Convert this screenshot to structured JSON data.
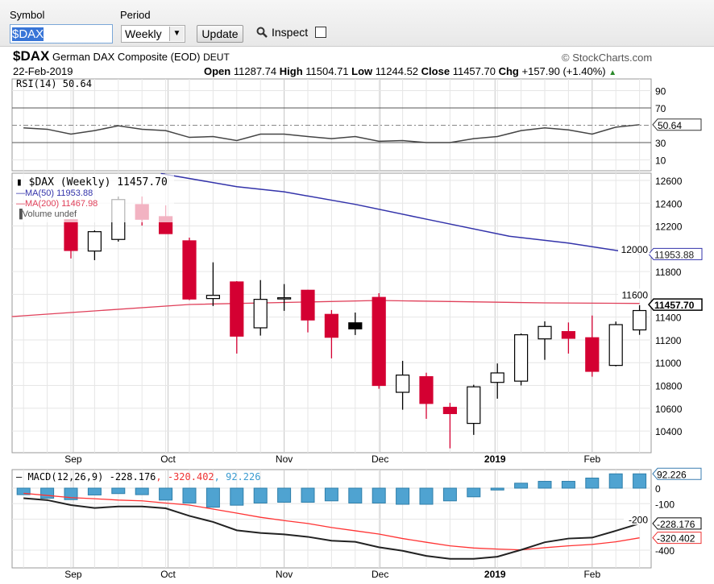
{
  "toolbar": {
    "symbol_label": "Symbol",
    "symbol_value": "$DAX",
    "period_label": "Period",
    "period_value": "Weekly",
    "update_label": "Update",
    "inspect_label": "Inspect"
  },
  "header": {
    "symbol": "$DAX",
    "name": "German DAX Composite (EOD)",
    "exchange": "DEUT",
    "credit": "© StockCharts.com",
    "date": "22-Feb-2019",
    "open_label": "Open",
    "open": "11287.74",
    "high_label": "High",
    "high": "11504.71",
    "low_label": "Low",
    "low": "11244.52",
    "close_label": "Close",
    "close": "11457.70",
    "chg_label": "Chg",
    "chg": "+157.90 (+1.40%)"
  },
  "colors": {
    "up": "#000000",
    "down": "#d40032",
    "ma50": "#3333aa",
    "ma200": "#e0405a",
    "hist": "#4fa3d1",
    "macd": "#222222",
    "signal": "#ff3333"
  },
  "rsi": {
    "legend": "RSI(14) 50.64",
    "last": "50.64",
    "ticks": [
      "90",
      "70",
      "30",
      "10"
    ],
    "tick_values": [
      90,
      70,
      30,
      10
    ],
    "values": [
      47,
      45.4,
      39.8,
      43.8,
      49.4,
      45.4,
      43.8,
      36,
      37,
      32.3,
      39.8,
      39.8,
      37,
      34.5,
      37,
      31.5,
      32.3,
      30,
      30,
      34.5,
      37,
      43.8,
      47,
      44.6,
      39.8,
      47.8,
      50.64
    ]
  },
  "price": {
    "legend_title": "$DAX (Weekly) 11457.70",
    "legend_ma50": "MA(50) 11953.88",
    "legend_ma200": "MA(200) 11467.98",
    "legend_volume": "Volume undef",
    "ticks": [
      "12600",
      "12400",
      "12200",
      "12000",
      "11800",
      "11600",
      "11400",
      "11200",
      "11000",
      "10800",
      "10600",
      "10400"
    ],
    "ma50_tag": "11953.88",
    "close_tag": "11457.70",
    "candles": [
      [
        12255,
        12260,
        11915,
        11985
      ],
      [
        11980,
        12162,
        11900,
        12150
      ],
      [
        12082,
        12459,
        12063,
        12432
      ],
      [
        12388,
        12459,
        12204,
        12259
      ],
      [
        12282,
        12381,
        12133,
        12133
      ],
      [
        12070,
        12098,
        11549,
        11559
      ],
      [
        11563,
        11881,
        11497,
        11591
      ],
      [
        11709,
        11716,
        11080,
        11233
      ],
      [
        11306,
        11725,
        11238,
        11556
      ],
      [
        11560,
        11690,
        11455,
        11570
      ],
      [
        11636,
        11640,
        11266,
        11375
      ],
      [
        11424,
        11462,
        11038,
        11223
      ],
      [
        11350,
        11440,
        11243,
        11297
      ],
      [
        11573,
        11610,
        10771,
        10800
      ],
      [
        10740,
        11016,
        10587,
        10891
      ],
      [
        10877,
        10912,
        10507,
        10642
      ],
      [
        10608,
        10647,
        10248,
        10553
      ],
      [
        10467,
        10806,
        10366,
        10788
      ],
      [
        10827,
        10993,
        10684,
        10910
      ],
      [
        10838,
        11257,
        10800,
        11245
      ],
      [
        11209,
        11363,
        11025,
        11318
      ],
      [
        11273,
        11353,
        11080,
        11214
      ],
      [
        11219,
        11414,
        10877,
        10924
      ],
      [
        10976,
        11361,
        10968,
        11334
      ],
      [
        11287.74,
        11504.71,
        11244.52,
        11457.7
      ]
    ],
    "ma50": [
      [
        3.8,
        12660
      ],
      [
        7,
        12545
      ],
      [
        9,
        12500
      ],
      [
        12,
        12390
      ],
      [
        15,
        12260
      ],
      [
        18.5,
        12110
      ],
      [
        21,
        12050
      ],
      [
        24,
        11954
      ]
    ],
    "ma200": [
      [
        -2.5,
        11405
      ],
      [
        5,
        11511
      ],
      [
        13,
        11546
      ],
      [
        20,
        11525
      ],
      [
        24,
        11520
      ]
    ]
  },
  "macd": {
    "legend_label": "MACD(12,26,9)",
    "legend_macd": "-228.176",
    "legend_signal": "-320.402",
    "legend_hist": "92.226",
    "ticks": [
      "0",
      "-100",
      "-200",
      "-400"
    ],
    "tick_values": [
      0,
      -100,
      -200,
      -400
    ],
    "hist": [
      -42,
      -65,
      -74,
      -44,
      -35,
      -42,
      -77,
      -96,
      -123,
      -110,
      -96,
      -91,
      -91,
      -82,
      -96,
      -96,
      -104,
      -104,
      -82,
      -56,
      -12,
      32,
      44,
      44,
      65,
      92.2,
      92.226
    ],
    "macd": [
      -65,
      -77,
      -109,
      -128,
      -118,
      -118,
      -130,
      -179,
      -218,
      -272,
      -289,
      -298,
      -314,
      -339,
      -346,
      -381,
      -404,
      -437,
      -456,
      -456,
      -442,
      -398,
      -349,
      -325,
      -319,
      -275,
      -228.176
    ],
    "signal": [
      -33,
      -47,
      -61,
      -68,
      -77,
      -82,
      -96,
      -109,
      -135,
      -161,
      -188,
      -209,
      -228,
      -254,
      -275,
      -296,
      -325,
      -349,
      -372,
      -386,
      -393,
      -398,
      -384,
      -372,
      -363,
      -346,
      -320.402
    ]
  },
  "xaxis": {
    "months": [
      {
        "label": "Sep",
        "idx": 0.1,
        "bold": false
      },
      {
        "label": "Oct",
        "idx": 4.1,
        "bold": false
      },
      {
        "label": "Nov",
        "idx": 9.0,
        "bold": false
      },
      {
        "label": "Dec",
        "idx": 13.05,
        "bold": false
      },
      {
        "label": "2019",
        "idx": 17.9,
        "bold": true
      },
      {
        "label": "Feb",
        "idx": 22.0,
        "bold": false
      }
    ]
  }
}
